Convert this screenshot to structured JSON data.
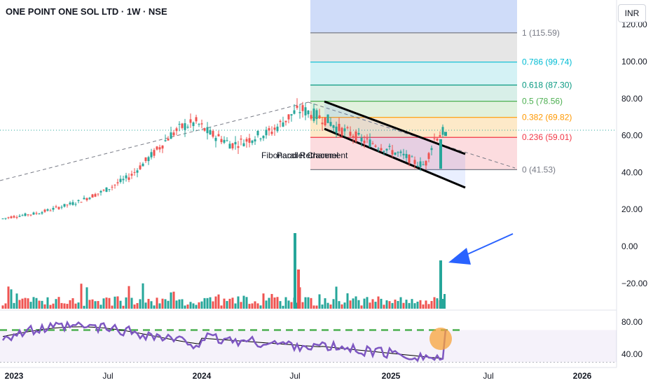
{
  "header": {
    "symbol_title": "ONE POINT ONE SOL LTD · 1W · NSE",
    "currency_button": "INR"
  },
  "chart_data": {
    "type": "candlestick",
    "x_tick_labels": [
      "2023",
      "Jul",
      "2024",
      "Jul",
      "2025",
      "Jul",
      "2026"
    ],
    "price_axis": {
      "ticks": [
        {
          "label": "120.00",
          "value": 120
        },
        {
          "label": "100.00",
          "value": 100
        },
        {
          "label": "80.00",
          "value": 80
        },
        {
          "label": "60.00",
          "value": 60
        },
        {
          "label": "40.00",
          "value": 40
        },
        {
          "label": "20.00",
          "value": 20
        },
        {
          "label": "0.00",
          "value": 0
        },
        {
          "label": "−20.00",
          "value": -20
        }
      ]
    },
    "rsi_axis": {
      "ticks": [
        {
          "label": "80.00",
          "value": 80
        },
        {
          "label": "40.00",
          "value": 40
        }
      ]
    },
    "fibonacci": {
      "label": "Fibonacci Retracement",
      "levels": [
        {
          "ratio": "1",
          "value": 115.59,
          "text": "1 (115.59)",
          "color": "#787b86"
        },
        {
          "ratio": "0.786",
          "value": 99.74,
          "text": "0.786 (99.74)",
          "color": "#00bcd4"
        },
        {
          "ratio": "0.618",
          "value": 87.3,
          "text": "0.618 (87.30)",
          "color": "#089981"
        },
        {
          "ratio": "0.5",
          "value": 78.56,
          "text": "0.5 (78.56)",
          "color": "#4caf50"
        },
        {
          "ratio": "0.382",
          "value": 69.82,
          "text": "0.382 (69.82)",
          "color": "#ff9800"
        },
        {
          "ratio": "0.236",
          "value": 59.01,
          "text": "0.236 (59.01)",
          "color": "#f23645"
        },
        {
          "ratio": "0",
          "value": 41.53,
          "text": "0 (41.53)",
          "color": "#787b86"
        }
      ]
    },
    "annotation_overlap_text": "Parallel Channel",
    "colors": {
      "up": "#26a69a",
      "down": "#ef5350",
      "rsi": "#7e57c2",
      "arrow": "#2962ff",
      "highlight": "#f7a33a",
      "dashed_level": "#4caf50"
    },
    "price_series": {
      "points": [
        [
          0.0,
          15
        ],
        [
          2,
          16
        ],
        [
          5,
          17
        ],
        [
          8,
          18
        ],
        [
          11,
          20
        ],
        [
          14,
          22
        ],
        [
          17,
          24
        ],
        [
          20,
          27
        ],
        [
          23,
          30
        ],
        [
          26,
          34
        ],
        [
          29,
          38
        ],
        [
          32,
          45
        ],
        [
          35,
          52
        ],
        [
          38,
          60
        ],
        [
          41,
          65
        ],
        [
          44,
          67
        ],
        [
          47,
          61
        ],
        [
          50,
          58
        ],
        [
          52,
          55
        ],
        [
          55,
          57
        ],
        [
          58,
          60
        ],
        [
          61,
          62
        ],
        [
          64,
          68
        ],
        [
          66,
          72
        ],
        [
          68,
          74
        ],
        [
          70,
          72
        ],
        [
          72,
          70
        ],
        [
          74,
          68
        ],
        [
          76,
          64
        ],
        [
          78,
          62
        ],
        [
          80,
          60
        ],
        [
          82,
          57
        ],
        [
          84,
          56
        ],
        [
          86,
          54
        ],
        [
          88,
          52
        ],
        [
          90,
          50
        ],
        [
          92,
          48
        ],
        [
          94,
          45
        ],
        [
          96,
          44
        ],
        [
          98,
          58
        ],
        [
          100,
          62
        ]
      ]
    }
  }
}
